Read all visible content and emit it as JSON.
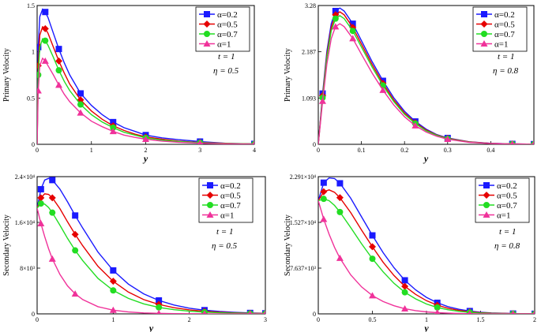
{
  "colors": {
    "s02": "#1a1aff",
    "s05": "#e60000",
    "s07": "#22dd22",
    "s1": "#f0329a"
  },
  "chart_data": [
    {
      "type": "line",
      "ylabel": "Primary Velocity",
      "xlabel": "y",
      "xlim": [
        0,
        4
      ],
      "ylim": [
        0,
        1.5
      ],
      "xticks": [
        0,
        1,
        2,
        3,
        4
      ],
      "yticks": [
        {
          "v": 0,
          "label": "0"
        },
        {
          "v": 0.5,
          "label": "0.5"
        },
        {
          "v": 1,
          "label": "1"
        },
        {
          "v": 1.5,
          "label": "1.5"
        }
      ],
      "annotation": {
        "t": "t = 1",
        "eta": "η = 0.5"
      },
      "series": [
        {
          "name": "α=0.2",
          "color": "s02",
          "marker": "square",
          "x": [
            0,
            0.02,
            0.05,
            0.1,
            0.15,
            0.2,
            0.3,
            0.4,
            0.5,
            0.6,
            0.8,
            1.0,
            1.2,
            1.4,
            1.6,
            1.8,
            2.0,
            2.3,
            2.6,
            3.0,
            3.5,
            4.0
          ],
          "y": [
            0,
            1.05,
            1.38,
            1.46,
            1.43,
            1.37,
            1.2,
            1.03,
            0.88,
            0.75,
            0.55,
            0.42,
            0.32,
            0.24,
            0.18,
            0.14,
            0.1,
            0.07,
            0.05,
            0.03,
            0.01,
            0.005
          ]
        },
        {
          "name": "α=0.5",
          "color": "s05",
          "marker": "diamond",
          "x": [
            0,
            0.02,
            0.05,
            0.1,
            0.15,
            0.2,
            0.3,
            0.4,
            0.5,
            0.6,
            0.8,
            1.0,
            1.2,
            1.4,
            1.6,
            1.8,
            2.0,
            2.3,
            2.6,
            3.0,
            3.5,
            4.0
          ],
          "y": [
            0,
            0.85,
            1.18,
            1.27,
            1.25,
            1.2,
            1.05,
            0.9,
            0.77,
            0.65,
            0.48,
            0.36,
            0.27,
            0.2,
            0.15,
            0.11,
            0.08,
            0.055,
            0.035,
            0.02,
            0.01,
            0.003
          ]
        },
        {
          "name": "α=0.7",
          "color": "s07",
          "marker": "circle",
          "x": [
            0,
            0.02,
            0.05,
            0.1,
            0.15,
            0.2,
            0.3,
            0.4,
            0.5,
            0.6,
            0.8,
            1.0,
            1.2,
            1.4,
            1.6,
            1.8,
            2.0,
            2.3,
            2.6,
            3.0,
            3.5,
            4.0
          ],
          "y": [
            0,
            0.75,
            1.05,
            1.14,
            1.12,
            1.07,
            0.94,
            0.8,
            0.68,
            0.58,
            0.43,
            0.32,
            0.24,
            0.18,
            0.13,
            0.1,
            0.07,
            0.045,
            0.03,
            0.017,
            0.008,
            0.003
          ]
        },
        {
          "name": "α=1",
          "color": "s1",
          "marker": "triangle",
          "x": [
            0,
            0.02,
            0.05,
            0.1,
            0.15,
            0.2,
            0.3,
            0.4,
            0.5,
            0.6,
            0.8,
            1.0,
            1.2,
            1.4,
            1.6,
            1.8,
            2.0,
            2.3,
            2.6,
            3.0,
            3.5,
            4.0
          ],
          "y": [
            0,
            0.58,
            0.85,
            0.93,
            0.9,
            0.85,
            0.75,
            0.64,
            0.54,
            0.46,
            0.34,
            0.25,
            0.19,
            0.14,
            0.1,
            0.075,
            0.055,
            0.035,
            0.022,
            0.012,
            0.005,
            0.002
          ]
        }
      ]
    },
    {
      "type": "line",
      "ylabel": "Primary Velocity",
      "xlabel": "y",
      "xlim": [
        0,
        0.5
      ],
      "ylim": [
        0,
        3.28
      ],
      "xticks": [
        0,
        0.1,
        0.2,
        0.3,
        0.4
      ],
      "yticks": [
        {
          "v": 0,
          "label": "0"
        },
        {
          "v": 1.093,
          "label": "1.093"
        },
        {
          "v": 2.187,
          "label": "2.187"
        },
        {
          "v": 3.28,
          "label": "3.28"
        }
      ],
      "annotation": {
        "t": "t = 1",
        "eta": "η = 0.8"
      },
      "series": [
        {
          "name": "α=0.2",
          "color": "s02",
          "marker": "square",
          "x": [
            0,
            0.01,
            0.02,
            0.03,
            0.04,
            0.05,
            0.06,
            0.08,
            0.1,
            0.125,
            0.15,
            0.175,
            0.2,
            0.225,
            0.25,
            0.275,
            0.3,
            0.35,
            0.4,
            0.45,
            0.5
          ],
          "y": [
            0,
            1.2,
            2.2,
            2.85,
            3.15,
            3.22,
            3.15,
            2.85,
            2.45,
            1.95,
            1.5,
            1.1,
            0.78,
            0.54,
            0.36,
            0.23,
            0.15,
            0.06,
            0.025,
            0.01,
            0.004
          ]
        },
        {
          "name": "α=0.5",
          "color": "s05",
          "marker": "diamond",
          "x": [
            0,
            0.01,
            0.02,
            0.03,
            0.04,
            0.05,
            0.06,
            0.08,
            0.1,
            0.125,
            0.15,
            0.175,
            0.2,
            0.225,
            0.25,
            0.275,
            0.3,
            0.35,
            0.4,
            0.45,
            0.5
          ],
          "y": [
            0,
            1.15,
            2.12,
            2.76,
            3.06,
            3.13,
            3.06,
            2.76,
            2.37,
            1.88,
            1.44,
            1.05,
            0.74,
            0.51,
            0.34,
            0.22,
            0.14,
            0.055,
            0.022,
            0.009,
            0.003
          ]
        },
        {
          "name": "α=0.7",
          "color": "s07",
          "marker": "circle",
          "x": [
            0,
            0.01,
            0.02,
            0.03,
            0.04,
            0.05,
            0.06,
            0.08,
            0.1,
            0.125,
            0.15,
            0.175,
            0.2,
            0.225,
            0.25,
            0.275,
            0.3,
            0.35,
            0.4,
            0.45,
            0.5
          ],
          "y": [
            0,
            1.1,
            2.05,
            2.68,
            2.97,
            3.04,
            2.97,
            2.68,
            2.3,
            1.82,
            1.39,
            1.01,
            0.71,
            0.49,
            0.32,
            0.21,
            0.13,
            0.05,
            0.02,
            0.008,
            0.003
          ]
        },
        {
          "name": "α=1",
          "color": "s1",
          "marker": "triangle",
          "x": [
            0,
            0.01,
            0.02,
            0.03,
            0.04,
            0.05,
            0.06,
            0.08,
            0.1,
            0.125,
            0.15,
            0.175,
            0.2,
            0.225,
            0.25,
            0.275,
            0.3,
            0.35,
            0.4,
            0.45,
            0.5
          ],
          "y": [
            0,
            1.02,
            1.9,
            2.5,
            2.78,
            2.85,
            2.78,
            2.5,
            2.13,
            1.68,
            1.28,
            0.93,
            0.65,
            0.44,
            0.29,
            0.19,
            0.12,
            0.045,
            0.018,
            0.007,
            0.002
          ]
        }
      ]
    },
    {
      "type": "line",
      "ylabel": "Secondary Velocity",
      "xlabel": "y",
      "xlim": [
        0,
        3
      ],
      "ylim": [
        0,
        24000
      ],
      "xticks": [
        0,
        1,
        2,
        3
      ],
      "yticks": [
        {
          "v": 0,
          "label": "0"
        },
        {
          "v": 8000,
          "label": "8×10³"
        },
        {
          "v": 16000,
          "label": "1.6×10⁴"
        },
        {
          "v": 24000,
          "label": "2.4×10⁴"
        }
      ],
      "annotation": {
        "t": "t = 1",
        "eta": "η = 0.5"
      },
      "series": [
        {
          "name": "α=0.2",
          "color": "s02",
          "marker": "square",
          "x": [
            0,
            0.05,
            0.1,
            0.15,
            0.2,
            0.3,
            0.4,
            0.5,
            0.6,
            0.8,
            1.0,
            1.2,
            1.4,
            1.6,
            1.8,
            2.0,
            2.2,
            2.4,
            2.6,
            2.8,
            3.0
          ],
          "y": [
            18500,
            21800,
            23400,
            23700,
            23400,
            21800,
            19600,
            17200,
            15000,
            10800,
            7600,
            5200,
            3500,
            2350,
            1550,
            1000,
            650,
            420,
            260,
            160,
            100
          ]
        },
        {
          "name": "α=0.5",
          "color": "s05",
          "marker": "diamond",
          "x": [
            0,
            0.05,
            0.1,
            0.15,
            0.2,
            0.3,
            0.4,
            0.5,
            0.6,
            0.8,
            1.0,
            1.2,
            1.4,
            1.6,
            1.8,
            2.0,
            2.2,
            2.4,
            2.6,
            2.8,
            3.0
          ],
          "y": [
            18500,
            20300,
            21000,
            20900,
            20300,
            18400,
            16100,
            13900,
            11900,
            8300,
            5700,
            3800,
            2500,
            1650,
            1080,
            700,
            450,
            290,
            180,
            110,
            70
          ]
        },
        {
          "name": "α=0.7",
          "color": "s07",
          "marker": "circle",
          "x": [
            0,
            0.05,
            0.1,
            0.15,
            0.2,
            0.3,
            0.4,
            0.5,
            0.6,
            0.8,
            1.0,
            1.2,
            1.4,
            1.6,
            1.8,
            2.0,
            2.2,
            2.4,
            2.6,
            2.8,
            3.0
          ],
          "y": [
            18500,
            19300,
            19200,
            18600,
            17700,
            15500,
            13200,
            11100,
            9300,
            6200,
            4100,
            2700,
            1750,
            1130,
            730,
            470,
            300,
            190,
            120,
            75,
            45
          ]
        },
        {
          "name": "α=1",
          "color": "s1",
          "marker": "triangle",
          "x": [
            0,
            0.05,
            0.1,
            0.15,
            0.2,
            0.3,
            0.4,
            0.5,
            0.6,
            0.8,
            1.0,
            1.2,
            1.4,
            1.6,
            1.8,
            2.0,
            2.2,
            2.4,
            2.6,
            2.8,
            3.0
          ],
          "y": [
            18500,
            15800,
            13500,
            11400,
            9600,
            6900,
            4900,
            3500,
            2500,
            1250,
            650,
            330,
            170,
            90,
            45,
            25,
            12,
            6,
            3,
            2,
            1
          ]
        }
      ]
    },
    {
      "type": "line",
      "ylabel": "Secondary Velocity",
      "xlabel": "y",
      "xlim": [
        0,
        2
      ],
      "ylim": [
        0,
        22910
      ],
      "xticks": [
        0,
        0.5,
        1,
        1.5,
        2
      ],
      "yticks": [
        {
          "v": 0,
          "label": "0"
        },
        {
          "v": 7637,
          "label": "7.637×10³"
        },
        {
          "v": 15270,
          "label": "1.527×10⁴"
        },
        {
          "v": 22910,
          "label": "2.291×10⁴"
        }
      ],
      "annotation": {
        "t": "t = 1",
        "eta": "η = 0.8"
      },
      "series": [
        {
          "name": "α=0.2",
          "color": "s02",
          "marker": "square",
          "x": [
            0,
            0.05,
            0.1,
            0.15,
            0.2,
            0.3,
            0.4,
            0.5,
            0.6,
            0.7,
            0.8,
            0.9,
            1.0,
            1.1,
            1.2,
            1.3,
            1.4,
            1.5,
            1.6,
            1.8,
            2.0
          ],
          "y": [
            18900,
            21900,
            22700,
            22600,
            21800,
            19300,
            16200,
            13100,
            10200,
            7700,
            5600,
            4000,
            2750,
            1850,
            1200,
            760,
            470,
            280,
            160,
            50,
            15
          ]
        },
        {
          "name": "α=0.5",
          "color": "s05",
          "marker": "diamond",
          "x": [
            0,
            0.05,
            0.1,
            0.15,
            0.2,
            0.3,
            0.4,
            0.5,
            0.6,
            0.7,
            0.8,
            0.9,
            1.0,
            1.1,
            1.2,
            1.3,
            1.4,
            1.5,
            1.6,
            1.8,
            2.0
          ],
          "y": [
            18900,
            20400,
            20700,
            20300,
            19400,
            16900,
            14000,
            11200,
            8600,
            6400,
            4600,
            3250,
            2200,
            1450,
            930,
            580,
            350,
            205,
            115,
            35,
            10
          ]
        },
        {
          "name": "α=0.7",
          "color": "s07",
          "marker": "circle",
          "x": [
            0,
            0.05,
            0.1,
            0.15,
            0.2,
            0.3,
            0.4,
            0.5,
            0.6,
            0.7,
            0.8,
            0.9,
            1.0,
            1.1,
            1.2,
            1.3,
            1.4,
            1.5,
            1.6,
            1.8,
            2.0
          ],
          "y": [
            18900,
            19200,
            18900,
            18100,
            17000,
            14400,
            11700,
            9200,
            7000,
            5100,
            3600,
            2500,
            1650,
            1070,
            680,
            420,
            250,
            145,
            80,
            25,
            7
          ]
        },
        {
          "name": "α=1",
          "color": "s1",
          "marker": "triangle",
          "x": [
            0,
            0.05,
            0.1,
            0.15,
            0.2,
            0.3,
            0.4,
            0.5,
            0.6,
            0.7,
            0.8,
            0.9,
            1.0,
            1.1,
            1.2,
            1.3,
            1.4,
            1.5,
            1.6,
            1.8,
            2.0
          ],
          "y": [
            18900,
            15800,
            13300,
            11100,
            9300,
            6500,
            4500,
            3050,
            2050,
            1350,
            860,
            540,
            330,
            200,
            115,
            65,
            35,
            18,
            9,
            2,
            1
          ]
        }
      ]
    }
  ]
}
